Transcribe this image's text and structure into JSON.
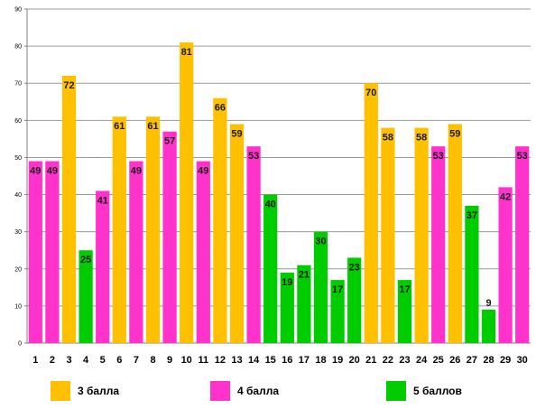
{
  "chart_data": {
    "type": "bar",
    "title": "",
    "xlabel": "",
    "ylabel": "",
    "ylim": [
      0,
      90
    ],
    "yticks": [
      0,
      10,
      20,
      30,
      40,
      50,
      60,
      70,
      80,
      90
    ],
    "grid": true,
    "legend_position": "bottom",
    "categories": [
      "1",
      "2",
      "3",
      "4",
      "5",
      "6",
      "7",
      "8",
      "9",
      "10",
      "11",
      "12",
      "13",
      "14",
      "15",
      "16",
      "17",
      "18",
      "19",
      "20",
      "21",
      "22",
      "23",
      "24",
      "25",
      "26",
      "27",
      "28",
      "29",
      "30"
    ],
    "values": [
      49,
      49,
      72,
      25,
      41,
      61,
      49,
      61,
      57,
      81,
      49,
      66,
      59,
      53,
      40,
      19,
      21,
      30,
      17,
      23,
      70,
      58,
      17,
      58,
      53,
      59,
      37,
      9,
      42,
      53
    ],
    "groups": [
      "4 балла",
      "4 балла",
      "3 балла",
      "5 баллов",
      "4 балла",
      "3 балла",
      "4 балла",
      "3 балла",
      "4 балла",
      "3 балла",
      "4 балла",
      "3 балла",
      "3 балла",
      "4 балла",
      "5 баллов",
      "5 баллов",
      "5 баллов",
      "5 баллов",
      "5 баллов",
      "5 баллов",
      "3 балла",
      "3 балла",
      "5 баллов",
      "3 балла",
      "4 балла",
      "3 балла",
      "5 баллов",
      "5 баллов",
      "4 балла",
      "4 балла"
    ],
    "legend": [
      {
        "name": "3 балла",
        "color": "#FFC000"
      },
      {
        "name": "4 балла",
        "color": "#FF33CC"
      },
      {
        "name": "5 баллов",
        "color": "#00CC00"
      }
    ]
  }
}
